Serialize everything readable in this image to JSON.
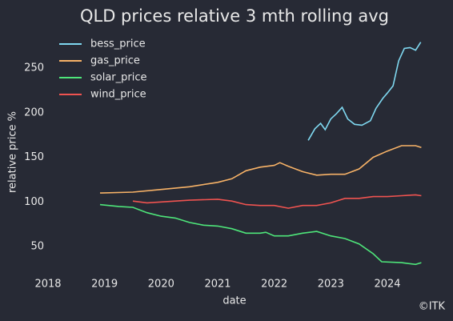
{
  "chart_data": {
    "type": "line",
    "title": "QLD prices relative 3 mth rolling avg",
    "xlabel": "date",
    "ylabel": "relative price %",
    "credit": "©ITK",
    "xlim": [
      2018,
      2024.75
    ],
    "xticks": [
      2018,
      2019,
      2020,
      2021,
      2022,
      2023,
      2024
    ],
    "ylim": [
      20,
      290
    ],
    "yticks": [
      50,
      100,
      150,
      200,
      250
    ],
    "grid": false,
    "legend": "upper left",
    "series": [
      {
        "name": "bess_price",
        "color": "#7fd8f0",
        "x": [
          2022.6,
          2022.72,
          2022.82,
          2022.9,
          2023.0,
          2023.1,
          2023.2,
          2023.3,
          2023.42,
          2023.55,
          2023.7,
          2023.8,
          2023.92,
          2024.0,
          2024.1,
          2024.2,
          2024.3,
          2024.4,
          2024.5,
          2024.59
        ],
        "values": [
          169,
          182,
          188,
          181,
          193,
          199,
          206,
          193,
          187,
          186,
          191,
          205,
          216,
          222,
          230,
          258,
          272,
          273,
          270,
          279
        ]
      },
      {
        "name": "gas_price",
        "color": "#f7b267",
        "x": [
          2018.92,
          2019.5,
          2020.0,
          2020.5,
          2021.0,
          2021.25,
          2021.5,
          2021.75,
          2022.0,
          2022.1,
          2022.25,
          2022.5,
          2022.75,
          2023.0,
          2023.25,
          2023.5,
          2023.75,
          2024.0,
          2024.25,
          2024.5,
          2024.6
        ],
        "values": [
          110,
          111,
          114,
          117,
          122,
          126,
          135,
          139,
          141,
          144,
          140,
          134,
          130,
          131,
          131,
          137,
          150,
          157,
          163,
          163,
          161
        ]
      },
      {
        "name": "solar_price",
        "color": "#4ee67a",
        "x": [
          2018.92,
          2019.25,
          2019.5,
          2019.75,
          2020.0,
          2020.25,
          2020.5,
          2020.75,
          2021.0,
          2021.25,
          2021.5,
          2021.75,
          2021.85,
          2022.0,
          2022.25,
          2022.5,
          2022.75,
          2023.0,
          2023.25,
          2023.5,
          2023.75,
          2023.9,
          2024.25,
          2024.5,
          2024.6
        ],
        "values": [
          97,
          95,
          94,
          88,
          84,
          82,
          77,
          74,
          73,
          70,
          65,
          65,
          66,
          62,
          62,
          65,
          67,
          62,
          59,
          53,
          42,
          33,
          32,
          30,
          32
        ]
      },
      {
        "name": "wind_price",
        "color": "#ef5350",
        "x": [
          2019.5,
          2019.75,
          2020.0,
          2020.5,
          2021.0,
          2021.25,
          2021.5,
          2021.75,
          2022.0,
          2022.25,
          2022.5,
          2022.75,
          2023.0,
          2023.25,
          2023.5,
          2023.75,
          2024.0,
          2024.25,
          2024.5,
          2024.6
        ],
        "values": [
          101,
          99,
          100,
          102,
          103,
          101,
          97,
          96,
          96,
          93,
          96,
          96,
          99,
          104,
          104,
          106,
          106,
          107,
          108,
          107
        ]
      }
    ]
  }
}
